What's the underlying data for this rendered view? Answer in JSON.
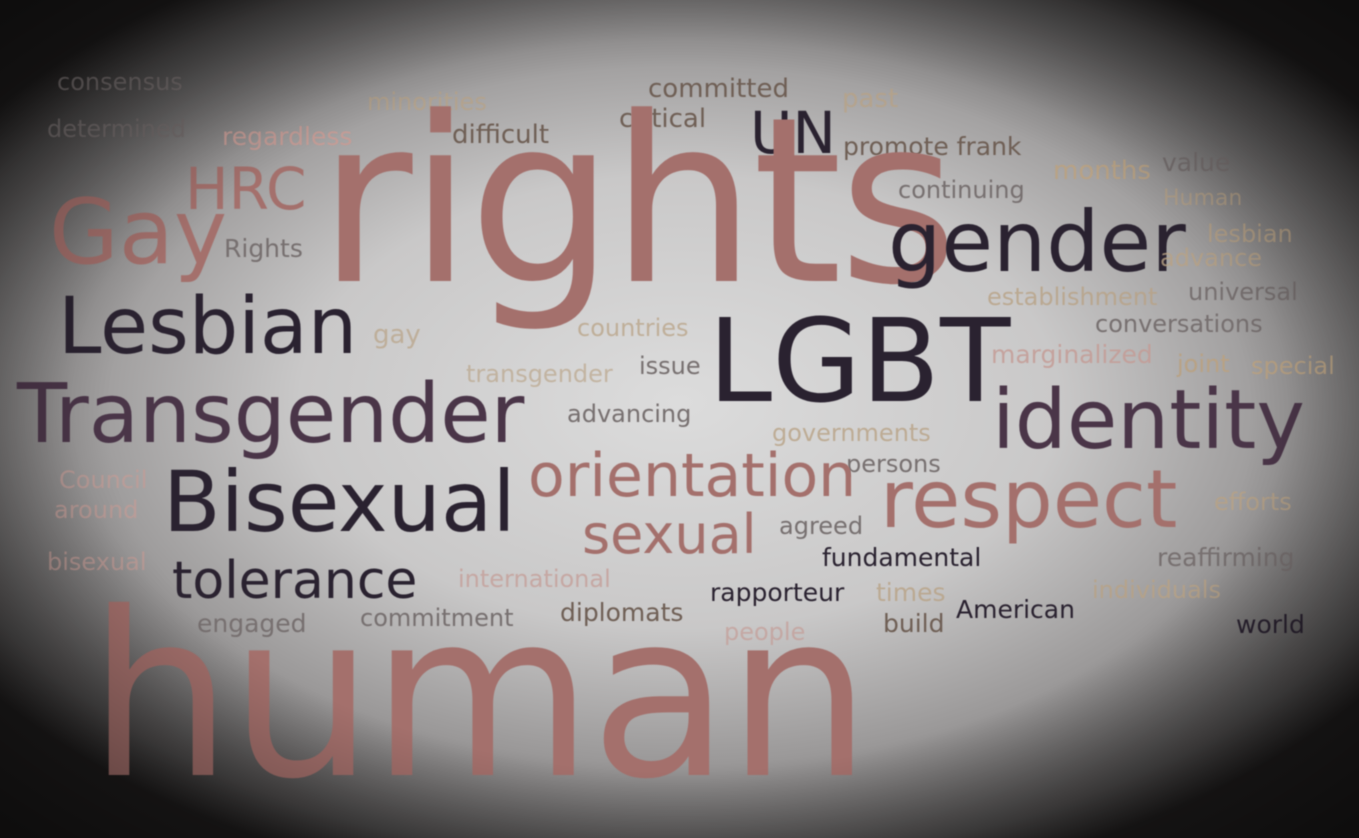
{
  "words": {
    "consensus": "consensus",
    "minorities": "minorities",
    "committed": "committed",
    "past": "past",
    "determined": "determined",
    "regardless": "regardless",
    "difficult": "difficult",
    "critical": "critical",
    "UN": "UN",
    "promote_frank": "promote frank",
    "value": "value",
    "HRC": "HRC",
    "rights": "rights",
    "months": "months",
    "continuing": "continuing",
    "Human_small": "Human",
    "Gay": "Gay",
    "Rights": "Rights",
    "gender": "gender",
    "lesbian": "lesbian",
    "advance": "advance",
    "establishment": "establishment",
    "universal": "universal",
    "Lesbian": "Lesbian",
    "gay": "gay",
    "countries": "countries",
    "LGBT": "LGBT",
    "conversations": "conversations",
    "transgender": "transgender",
    "issue": "issue",
    "marginalized": "marginalized",
    "joint": "joint",
    "special": "special",
    "Transgender": "Transgender",
    "advancing": "advancing",
    "identity": "identity",
    "governments": "governments",
    "Council": "Council",
    "persons": "persons",
    "orientation": "orientation",
    "around": "around",
    "Bisexual": "Bisexual",
    "respect": "respect",
    "efforts": "efforts",
    "agreed": "agreed",
    "sexual": "sexual",
    "bisexual": "bisexual",
    "fundamental": "fundamental",
    "reaffirming": "reaffirming",
    "tolerance": "tolerance",
    "international": "international",
    "rapporteur": "rapporteur",
    "times": "times",
    "individuals": "individuals",
    "engaged": "engaged",
    "commitment": "commitment",
    "diplomats": "diplomats",
    "people": "people",
    "build": "build",
    "American": "American",
    "world": "world",
    "human": "human"
  },
  "colors": {
    "rose": "#a4706c",
    "dark": "#2a2230",
    "plum": "#4a3548",
    "brown": "#6f5f55",
    "tan": "#b8a285"
  }
}
